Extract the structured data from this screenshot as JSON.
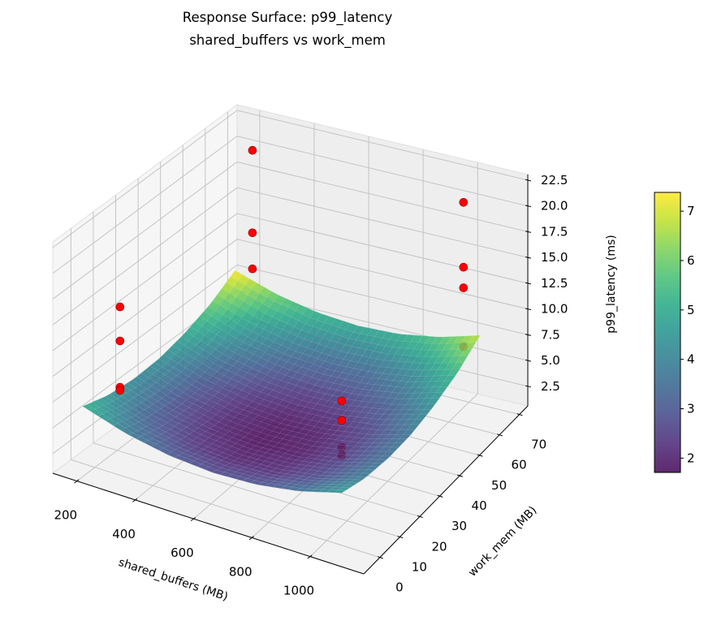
{
  "chart_data": {
    "type": "surface",
    "title": "Response Surface: p99_latency",
    "subtitle": "shared_buffers vs work_mem",
    "xlabel": "shared_buffers (MB)",
    "ylabel": "work_mem (MB)",
    "zlabel": "p99_latency (ms)",
    "xlim": [
      117,
      1184
    ],
    "ylim": [
      -8.1,
      74.2
    ],
    "zlim": [
      0.6,
      23.05
    ],
    "xticks": [
      200,
      400,
      600,
      800,
      1000
    ],
    "xtick_labels": [
      "200",
      "400",
      "600",
      "800",
      "1000"
    ],
    "yticks": [
      0,
      10,
      20,
      30,
      40,
      50,
      60,
      70
    ],
    "ytick_labels": [
      "0",
      "10",
      "20",
      "30",
      "40",
      "50",
      "60",
      "70"
    ],
    "zticks": [
      2.5,
      5.0,
      7.5,
      10.0,
      12.5,
      15.0,
      17.5,
      20.0,
      22.5
    ],
    "ztick_labels": [
      "2.5",
      "5.0",
      "7.5",
      "10.0",
      "12.5",
      "15.0",
      "17.5",
      "20.0",
      "22.5"
    ],
    "grid": true,
    "surface": {
      "colormap": "viridis",
      "alpha": 0.85,
      "x": [
        128,
        277,
        427,
        576,
        725,
        875,
        1024
      ],
      "y": [
        4,
        15,
        27,
        38,
        49,
        61,
        72
      ],
      "z": [
        [
          5.23,
          3.91,
          3.09,
          2.75,
          2.9,
          3.55,
          4.68
        ],
        [
          4.49,
          3.17,
          2.35,
          2.01,
          2.16,
          2.81,
          3.94
        ],
        [
          4.19,
          2.87,
          2.05,
          1.71,
          1.86,
          2.51,
          3.64
        ],
        [
          4.33,
          3.01,
          2.19,
          1.85,
          2.0,
          2.65,
          3.78
        ],
        [
          4.9,
          3.59,
          2.76,
          2.43,
          2.58,
          3.22,
          4.35
        ],
        [
          5.92,
          4.61,
          3.78,
          3.45,
          3.6,
          4.24,
          5.37
        ],
        [
          7.38,
          6.06,
          5.24,
          4.9,
          5.05,
          5.7,
          6.83
        ]
      ]
    },
    "scatter": {
      "color": "#ff0000",
      "edge_color": "#8b0000",
      "points": [
        {
          "x": 256,
          "y": 4,
          "z": 16.0
        },
        {
          "x": 256,
          "y": 4,
          "z": 12.7
        },
        {
          "x": 256,
          "y": 4,
          "z": 8.2
        },
        {
          "x": 256,
          "y": 4,
          "z": 7.9
        },
        {
          "x": 256,
          "y": 64,
          "z": 21.2
        },
        {
          "x": 256,
          "y": 64,
          "z": 13.2
        },
        {
          "x": 256,
          "y": 64,
          "z": 9.7
        },
        {
          "x": 1024,
          "y": 4,
          "z": 13.6
        },
        {
          "x": 1024,
          "y": 4,
          "z": 11.7
        },
        {
          "x": 1024,
          "y": 4,
          "z": 9.1
        },
        {
          "x": 1024,
          "y": 4,
          "z": 8.3
        },
        {
          "x": 1024,
          "y": 64,
          "z": 21.3
        },
        {
          "x": 1024,
          "y": 64,
          "z": 15.0
        },
        {
          "x": 1024,
          "y": 64,
          "z": 13.0
        },
        {
          "x": 1024,
          "y": 64,
          "z": 7.3
        }
      ]
    },
    "colorbar": {
      "range": [
        1.71,
        7.38
      ],
      "ticks": [
        2,
        3,
        4,
        5,
        6,
        7
      ],
      "tick_labels": [
        "2",
        "3",
        "4",
        "5",
        "6",
        "7"
      ]
    }
  }
}
